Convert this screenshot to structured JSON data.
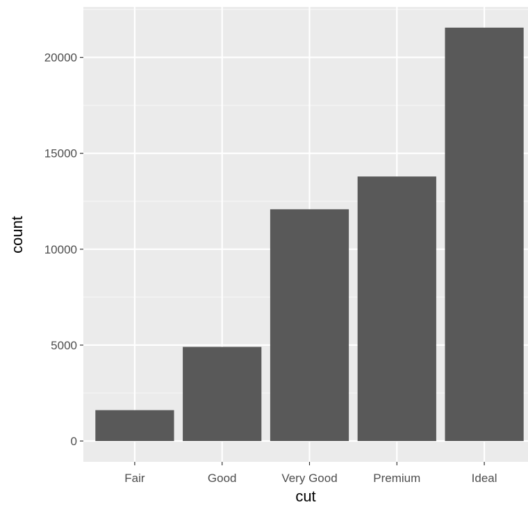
{
  "chart_data": {
    "type": "bar",
    "categories": [
      "Fair",
      "Good",
      "Very Good",
      "Premium",
      "Ideal"
    ],
    "values": [
      1610,
      4906,
      12082,
      13791,
      21551
    ],
    "xlabel": "cut",
    "ylabel": "count",
    "ylim": [
      0,
      22630
    ],
    "yticks": [
      0,
      5000,
      10000,
      15000,
      20000
    ],
    "ytick_labels": [
      "0",
      "5000",
      "10000",
      "15000",
      "20000"
    ],
    "grid": true,
    "legend": "none"
  },
  "colors": {
    "panel_background": "#ebebeb",
    "grid_major": "#ffffff",
    "bar_fill": "#595959",
    "tick_text": "#4d4d4d",
    "axis_title": "#000000"
  }
}
